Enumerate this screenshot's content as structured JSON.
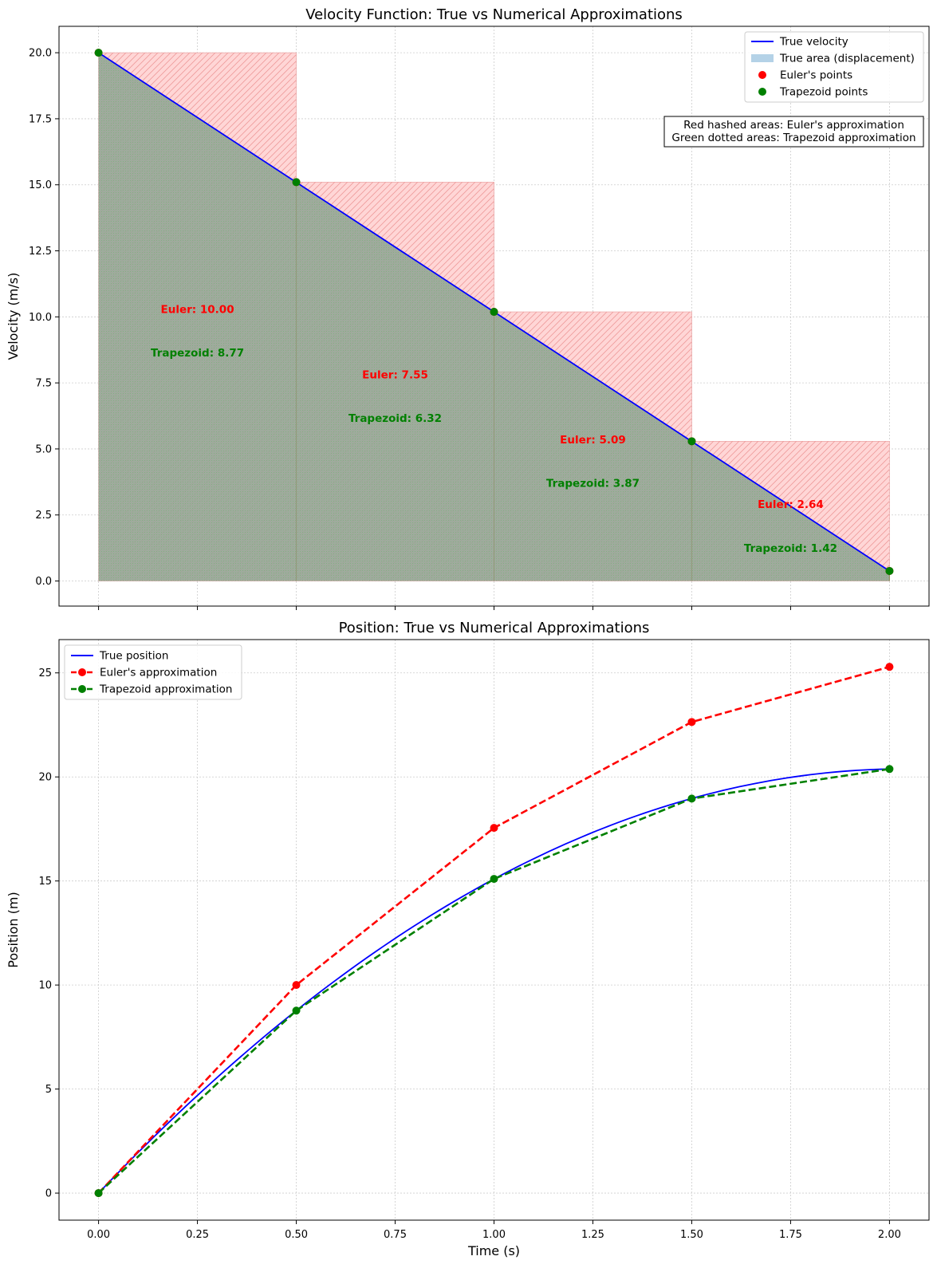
{
  "chart_data": [
    {
      "type": "line",
      "title": "Velocity Function: True vs Numerical Approximations",
      "xlabel": "",
      "ylabel": "Velocity (m/s)",
      "xlim": [
        -0.1,
        2.1
      ],
      "ylim": [
        -0.95,
        21.0
      ],
      "yticks": [
        0.0,
        2.5,
        5.0,
        7.5,
        10.0,
        12.5,
        15.0,
        17.5,
        20.0
      ],
      "ytick_labels": [
        "0.0",
        "2.5",
        "5.0",
        "7.5",
        "10.0",
        "12.5",
        "15.0",
        "17.5",
        "20.0"
      ],
      "xticks": [
        0.0,
        0.25,
        0.5,
        0.75,
        1.0,
        1.25,
        1.5,
        1.75,
        2.0
      ],
      "grid": true,
      "legend_position": "top-right",
      "legend": [
        {
          "label": "True velocity",
          "kind": "line",
          "color": "#0000ff"
        },
        {
          "label": "True area (displacement)",
          "kind": "patch",
          "color": "#b4d2e7"
        },
        {
          "label": "Euler's points",
          "kind": "marker",
          "color": "#ff0000"
        },
        {
          "label": "Trapezoid points",
          "kind": "marker",
          "color": "#008000"
        }
      ],
      "note_lines": [
        "Red hashed areas: Euler's approximation",
        "Green dotted areas: Trapezoid approximation"
      ],
      "series": [
        {
          "name": "True velocity",
          "x": [
            0,
            2.0
          ],
          "y": [
            20.0,
            0.38
          ],
          "color": "#0000ff"
        },
        {
          "name": "Euler's points",
          "x": [
            0,
            0.5,
            1.0,
            1.5,
            2.0
          ],
          "y": [
            20.0,
            15.1,
            10.19,
            5.29,
            0.38
          ],
          "color": "#ff0000"
        },
        {
          "name": "Trapezoid points",
          "x": [
            0,
            0.5,
            1.0,
            1.5,
            2.0
          ],
          "y": [
            20.0,
            15.1,
            10.19,
            5.29,
            0.38
          ],
          "color": "#008000"
        }
      ],
      "euler_rects": [
        {
          "x0": 0.0,
          "x1": 0.5,
          "height": 20.0
        },
        {
          "x0": 0.5,
          "x1": 1.0,
          "height": 15.1
        },
        {
          "x0": 1.0,
          "x1": 1.5,
          "height": 10.19
        },
        {
          "x0": 1.5,
          "x1": 2.0,
          "height": 5.29
        }
      ],
      "annotations": [
        {
          "text": "Euler: 10.00",
          "x": 0.25,
          "y": 10.3,
          "color": "#ff0000"
        },
        {
          "text": "Trapezoid: 8.77",
          "x": 0.25,
          "y": 8.65,
          "color": "#008000"
        },
        {
          "text": "Euler: 7.55",
          "x": 0.75,
          "y": 7.82,
          "color": "#ff0000"
        },
        {
          "text": "Trapezoid: 6.32",
          "x": 0.75,
          "y": 6.17,
          "color": "#008000"
        },
        {
          "text": "Euler: 5.09",
          "x": 1.25,
          "y": 5.36,
          "color": "#ff0000"
        },
        {
          "text": "Trapezoid: 3.87",
          "x": 1.25,
          "y": 3.71,
          "color": "#008000"
        },
        {
          "text": "Euler: 2.64",
          "x": 1.75,
          "y": 2.91,
          "color": "#ff0000"
        },
        {
          "text": "Trapezoid: 1.42",
          "x": 1.75,
          "y": 1.26,
          "color": "#008000"
        }
      ]
    },
    {
      "type": "line",
      "title": "Position: True vs Numerical Approximations",
      "xlabel": "Time (s)",
      "ylabel": "Position (m)",
      "xlim": [
        -0.1,
        2.1
      ],
      "ylim": [
        -1.3,
        26.6
      ],
      "yticks": [
        0,
        5,
        10,
        15,
        20,
        25
      ],
      "ytick_labels": [
        "0",
        "5",
        "10",
        "15",
        "20",
        "25"
      ],
      "xticks": [
        0.0,
        0.25,
        0.5,
        0.75,
        1.0,
        1.25,
        1.5,
        1.75,
        2.0
      ],
      "xtick_labels": [
        "0.00",
        "0.25",
        "0.50",
        "0.75",
        "1.00",
        "1.25",
        "1.50",
        "1.75",
        "2.00"
      ],
      "grid": true,
      "legend_position": "top-left",
      "legend": [
        {
          "label": "True position",
          "kind": "line",
          "color": "#0000ff"
        },
        {
          "label": "Euler's approximation",
          "kind": "dashed-marker",
          "color": "#ff0000"
        },
        {
          "label": "Trapezoid approximation",
          "kind": "dashed-marker",
          "color": "#008000"
        }
      ],
      "series": [
        {
          "name": "True position",
          "kind": "quadratic",
          "v0": 20.0,
          "a": -9.81,
          "x_range": [
            0,
            2.0
          ],
          "color": "#0000ff"
        },
        {
          "name": "Euler's approximation",
          "x": [
            0,
            0.5,
            1.0,
            1.5,
            2.0
          ],
          "y": [
            0,
            10.0,
            17.55,
            22.64,
            25.29
          ],
          "color": "#ff0000"
        },
        {
          "name": "Trapezoid approximation",
          "x": [
            0,
            0.5,
            1.0,
            1.5,
            2.0
          ],
          "y": [
            0,
            8.77,
            15.1,
            18.96,
            20.38
          ],
          "color": "#008000"
        }
      ]
    }
  ]
}
